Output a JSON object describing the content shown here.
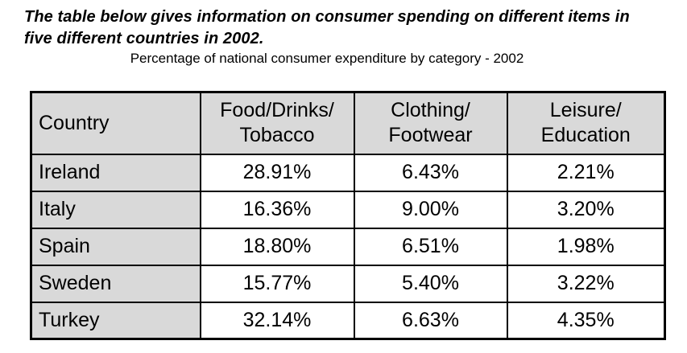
{
  "prompt": "The table below gives information on consumer spending on different items in\nfive different countries in 2002.",
  "caption": "Percentage of national consumer expenditure by category - 2002",
  "colors": {
    "header_bg": "#d9d9d9",
    "border": "#000000",
    "text": "#000000",
    "page_bg": "#ffffff"
  },
  "table": {
    "headers": {
      "country": "Country",
      "food": "Food/Drinks/\nTobacco",
      "clothing": "Clothing/\nFootwear",
      "leisure": "Leisure/\nEducation"
    },
    "rows": [
      {
        "country": "Ireland",
        "food": "28.91%",
        "clothing": "6.43%",
        "leisure": "2.21%"
      },
      {
        "country": "Italy",
        "food": "16.36%",
        "clothing": "9.00%",
        "leisure": "3.20%"
      },
      {
        "country": "Spain",
        "food": "18.80%",
        "clothing": "6.51%",
        "leisure": "1.98%"
      },
      {
        "country": "Sweden",
        "food": "15.77%",
        "clothing": "5.40%",
        "leisure": "3.22%"
      },
      {
        "country": "Turkey",
        "food": "32.14%",
        "clothing": "6.63%",
        "leisure": "4.35%"
      }
    ]
  },
  "chart_data": {
    "type": "table",
    "title": "Percentage of national consumer expenditure by category - 2002",
    "year": "2002",
    "columns": [
      "Country",
      "Food/Drinks/Tobacco",
      "Clothing/Footwear",
      "Leisure/Education"
    ],
    "categories": [
      "Ireland",
      "Italy",
      "Spain",
      "Sweden",
      "Turkey"
    ],
    "series": [
      {
        "name": "Food/Drinks/Tobacco",
        "values": [
          28.91,
          16.36,
          18.8,
          15.77,
          32.14
        ]
      },
      {
        "name": "Clothing/Footwear",
        "values": [
          6.43,
          9.0,
          6.51,
          5.4,
          6.63
        ]
      },
      {
        "name": "Leisure/Education",
        "values": [
          2.21,
          3.2,
          1.98,
          3.22,
          4.35
        ]
      }
    ],
    "unit": "percent"
  }
}
